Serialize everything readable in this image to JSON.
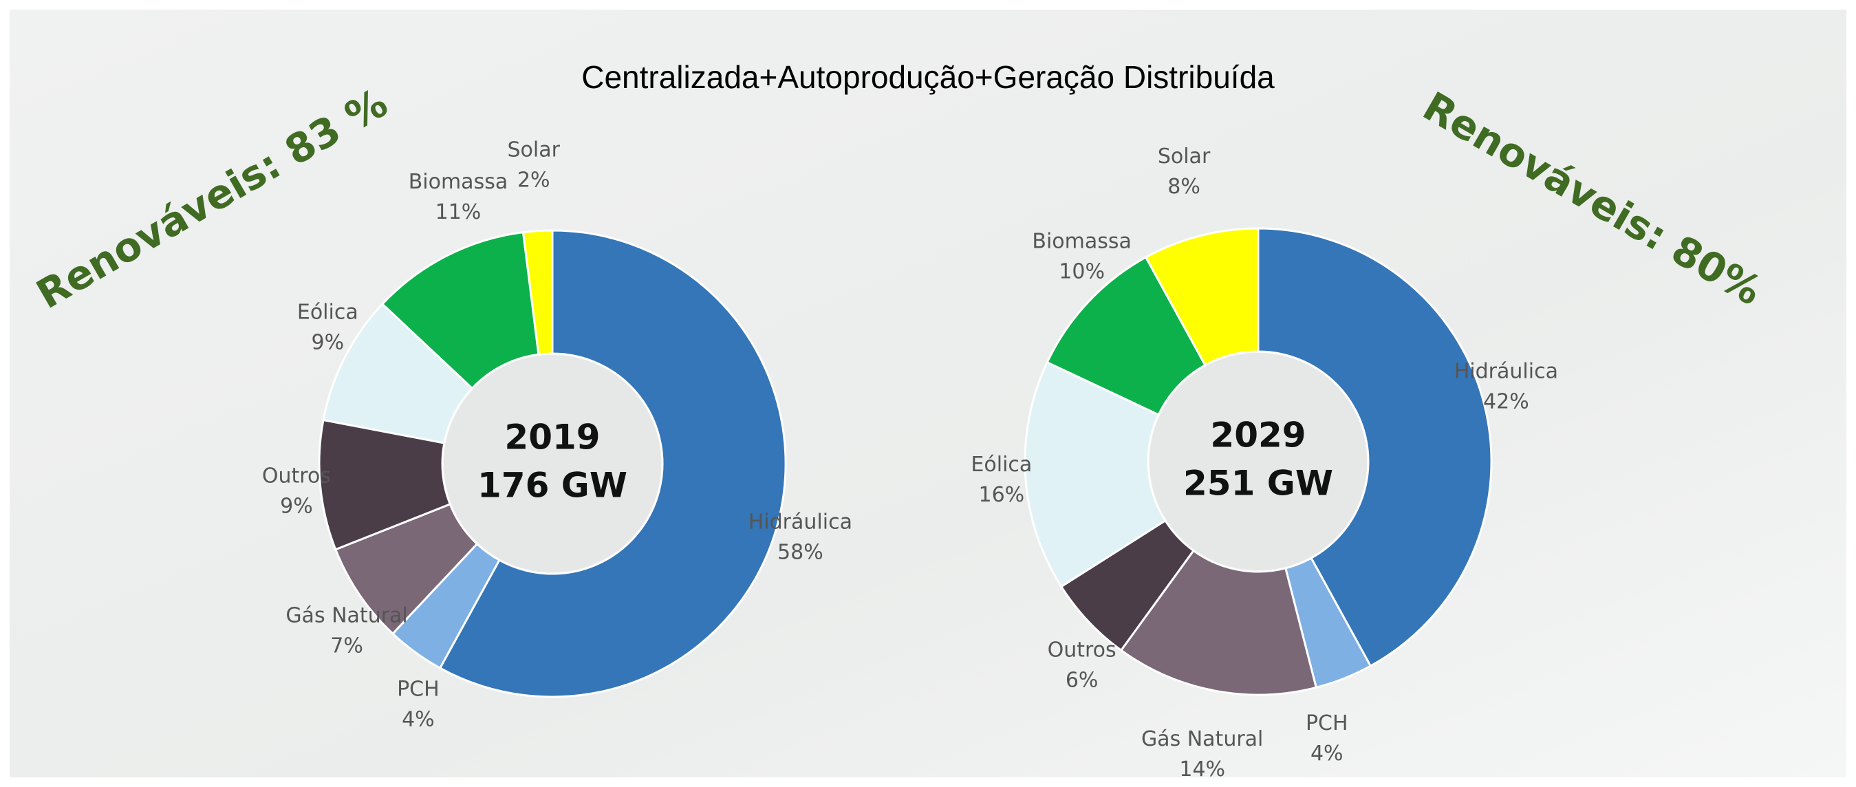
{
  "title": "Centralizada+Autoprodução+Geração Distribuída",
  "chart_data": [
    {
      "type": "pie",
      "annotation": "Renováveis: 83 %",
      "center_labels": [
        "2019",
        "176 GW"
      ],
      "categories": [
        "Hidráulica",
        "PCH",
        "Gás Natural",
        "Outros",
        "Eólica",
        "Biomassa",
        "Solar"
      ],
      "values": [
        58,
        4,
        7,
        9,
        9,
        11,
        2
      ],
      "value_labels": [
        "58%",
        "4%",
        "7%",
        "9%",
        "9%",
        "11%",
        "2%"
      ],
      "colors": [
        "#3476b8",
        "#7eb0e4",
        "#7a6877",
        "#4a3d48",
        "#e0f2f5",
        "#0db14b",
        "#ffff00"
      ]
    },
    {
      "type": "pie",
      "annotation": "Renováveis: 80%",
      "center_labels": [
        "2029",
        "251 GW"
      ],
      "categories": [
        "Hidráulica",
        "PCH",
        "Gás Natural",
        "Outros",
        "Eólica",
        "Biomassa",
        "Solar"
      ],
      "values": [
        42,
        4,
        14,
        6,
        16,
        10,
        8
      ],
      "value_labels": [
        "42%",
        "4%",
        "14%",
        "6%",
        "16%",
        "10%",
        "8%"
      ],
      "colors": [
        "#3476b8",
        "#7eb0e4",
        "#7a6877",
        "#4a3d48",
        "#e0f2f5",
        "#0db14b",
        "#ffff00"
      ]
    }
  ]
}
